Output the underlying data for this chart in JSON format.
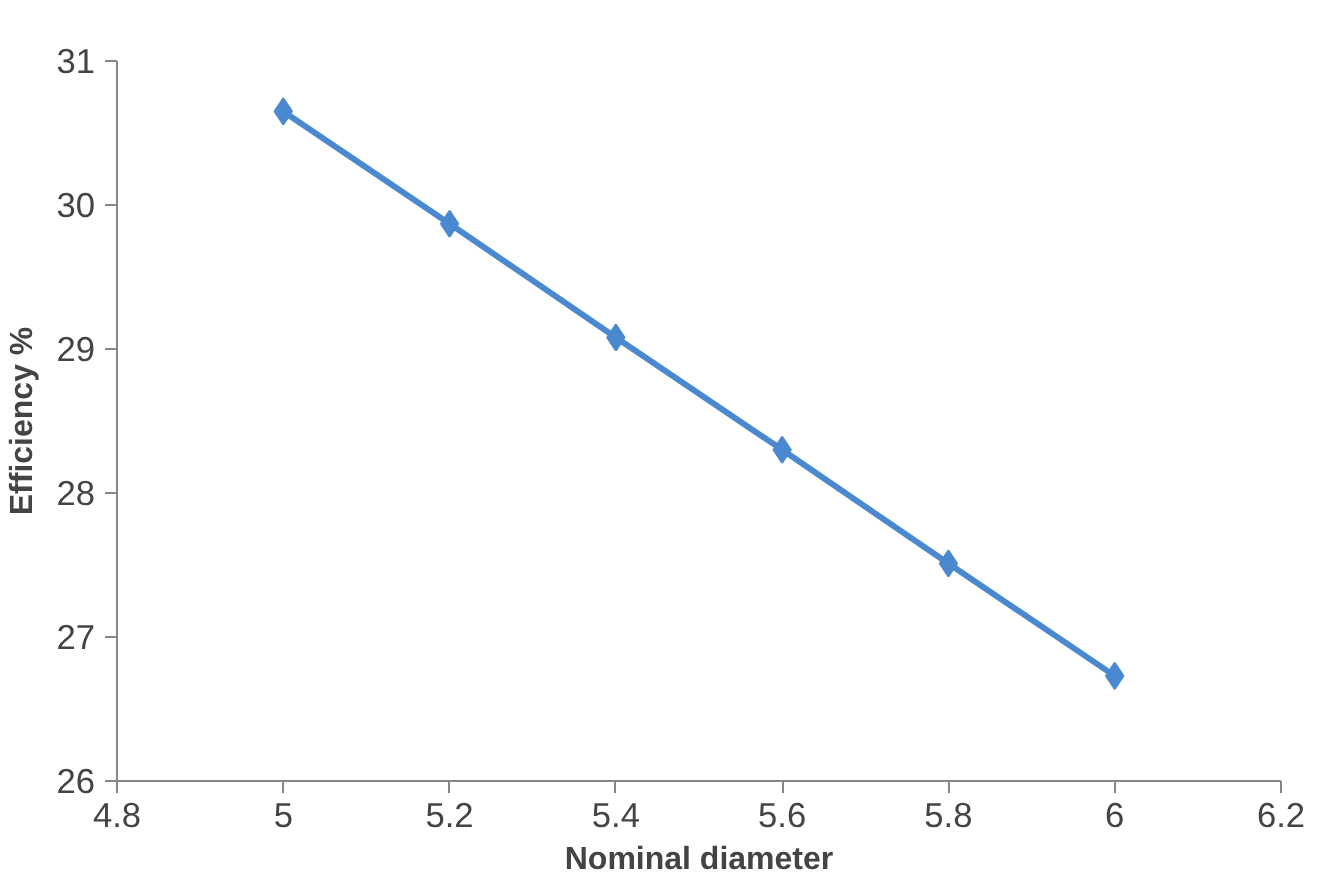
{
  "chart_data": {
    "type": "line",
    "xlabel": "Nominal diameter",
    "ylabel": "Efficiency %",
    "x": [
      5,
      5.2,
      5.4,
      5.6,
      5.8,
      6
    ],
    "series": [
      {
        "color": "#4a89cf",
        "values": [
          30.65,
          29.87,
          29.08,
          28.3,
          27.51,
          26.73
        ]
      }
    ],
    "xlim": [
      4.8,
      6.2
    ],
    "xticks": [
      4.8,
      5,
      5.2,
      5.4,
      5.6,
      5.8,
      6,
      6.2
    ],
    "ylim": [
      26,
      31
    ],
    "yticks": [
      26,
      27,
      28,
      29,
      30,
      31
    ],
    "grid": false,
    "marker": "diamond",
    "line_style": "solid"
  }
}
